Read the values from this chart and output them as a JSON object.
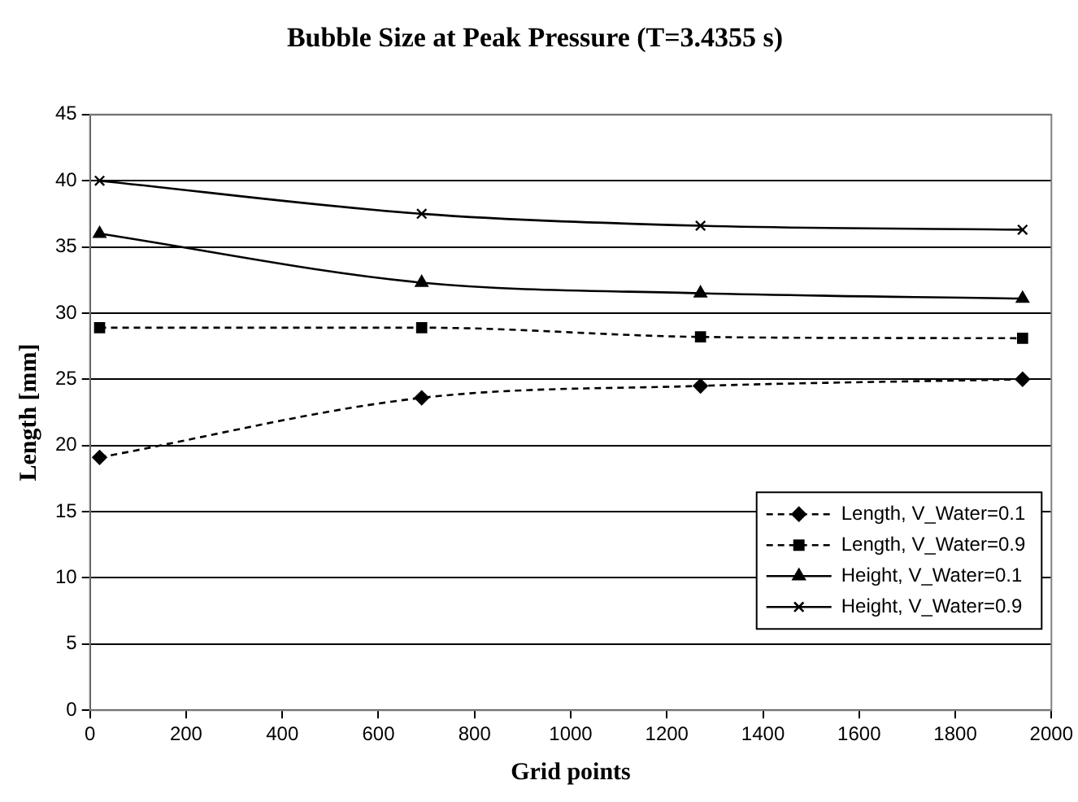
{
  "chart_data": {
    "type": "line",
    "title": "Bubble Size at Peak Pressure (T=3.4355 s)",
    "xlabel": "Grid points",
    "ylabel": "Length [mm]",
    "xlim": [
      0,
      2000
    ],
    "xticks": [
      0,
      200,
      400,
      600,
      800,
      1000,
      1200,
      1400,
      1600,
      1800,
      2000
    ],
    "ylim": [
      0,
      45
    ],
    "yticks": [
      0,
      5,
      10,
      15,
      20,
      25,
      30,
      35,
      40,
      45
    ],
    "grid": "y",
    "legend": "bottom right",
    "x": [
      20,
      690,
      1270,
      1940
    ],
    "series": [
      {
        "name": "Length, V_Water=0.1",
        "color": "#000000",
        "values": [
          19.1,
          23.6,
          24.5,
          25.0
        ],
        "marker": "diamond",
        "line_style": "dashed"
      },
      {
        "name": "Length, V_Water=0.9",
        "color": "#000000",
        "values": [
          28.9,
          28.9,
          28.2,
          28.1
        ],
        "marker": "square",
        "line_style": "dashed"
      },
      {
        "name": "Height, V_Water=0.1",
        "color": "#000000",
        "values": [
          36.0,
          32.3,
          31.5,
          31.1
        ],
        "marker": "triangle",
        "line_style": "solid"
      },
      {
        "name": "Height, V_Water=0.9",
        "color": "#000000",
        "values": [
          40.0,
          37.5,
          36.6,
          36.3
        ],
        "marker": "cross",
        "line_style": "solid"
      }
    ]
  }
}
